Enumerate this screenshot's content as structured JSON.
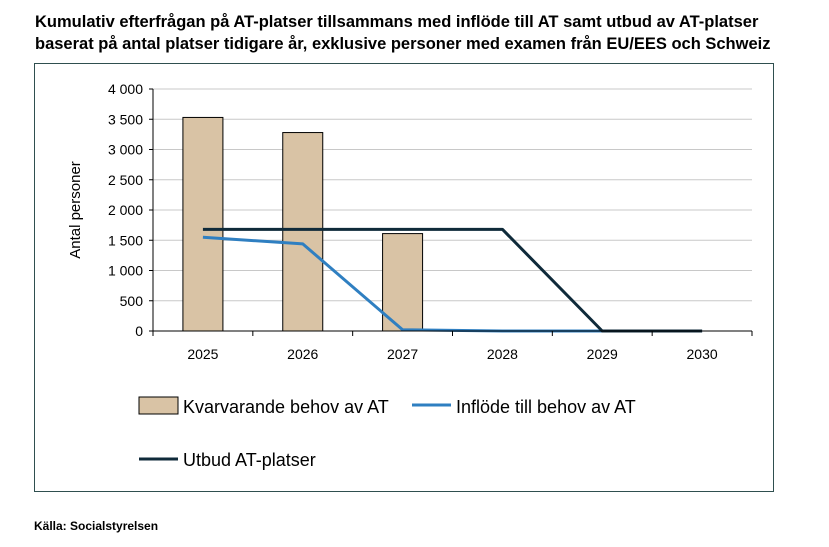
{
  "title": {
    "line1": "Kumulativ efterfrågan på AT-platser tillsammans med inflöde till AT samt utbud av AT-platser",
    "line2": "baserat på antal platser tidigare år, exklusive personer med examen från EU/EES och Schweiz"
  },
  "source": "Källa: Socialstyrelsen",
  "colors": {
    "bar_fill": "#d9c3a5",
    "bar_stroke": "#000000",
    "inflow_line": "#2f7fc1",
    "supply_line": "#0f2a3a",
    "grid": "#c8c8c8",
    "frame": "#2f4f4f"
  },
  "chart_data": {
    "type": "bar+line",
    "ylabel": "Antal personer",
    "ylim": [
      0,
      4000
    ],
    "yticks": [
      {
        "value": 0,
        "label": "0"
      },
      {
        "value": 500,
        "label": "500"
      },
      {
        "value": 1000,
        "label": "1 000"
      },
      {
        "value": 1500,
        "label": "1 500"
      },
      {
        "value": 2000,
        "label": "2 000"
      },
      {
        "value": 2500,
        "label": "2 500"
      },
      {
        "value": 3000,
        "label": "3 000"
      },
      {
        "value": 3500,
        "label": "3 500"
      },
      {
        "value": 4000,
        "label": "4 000"
      }
    ],
    "categories": [
      "2025",
      "2026",
      "2027",
      "2028",
      "2029",
      "2030"
    ],
    "grid": "horizontal",
    "legend_position": "bottom",
    "series": [
      {
        "name": "Kvarvarande behov av AT",
        "kind": "bar",
        "values": [
          3530,
          3280,
          1610,
          null,
          null,
          null
        ]
      },
      {
        "name": "Inflöde till behov av AT",
        "kind": "line",
        "values": [
          1550,
          1440,
          20,
          0,
          0,
          0
        ]
      },
      {
        "name": "Utbud AT-platser",
        "kind": "line",
        "values": [
          1680,
          1680,
          1680,
          1680,
          0,
          0
        ]
      }
    ]
  }
}
